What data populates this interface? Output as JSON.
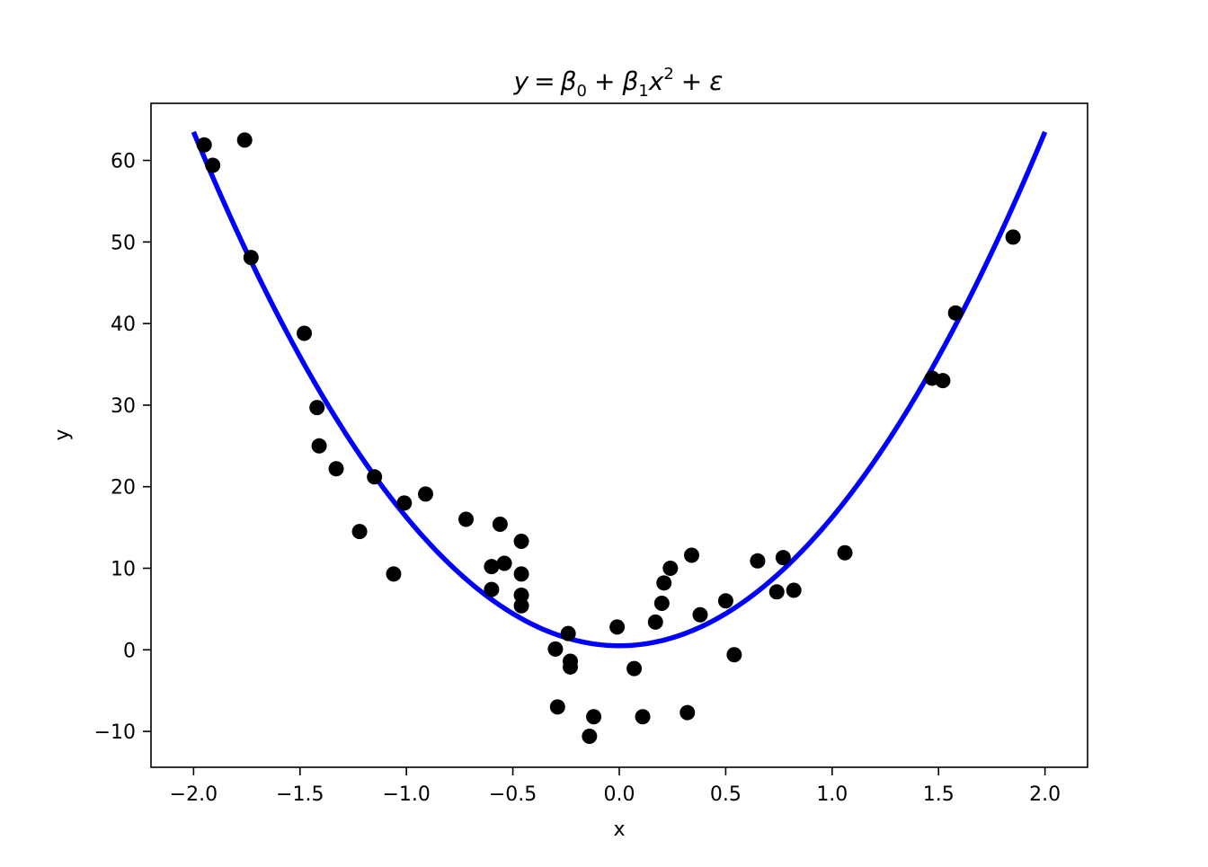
{
  "chart_data": {
    "type": "scatter",
    "title": {
      "y": "y",
      "eq": "=",
      "b0": "β",
      "b0_sub": "0",
      "plus1": "+",
      "b1": "β",
      "b1_sub": "1",
      "xvar": "x",
      "xpow": "2",
      "plus2": "+",
      "eps": "ε"
    },
    "xlabel": "x",
    "ylabel": "y",
    "xlim": [
      -2.2,
      2.2
    ],
    "ylim": [
      -14.4,
      67.0
    ],
    "xticks": [
      -2.0,
      -1.5,
      -1.0,
      -0.5,
      0.0,
      0.5,
      1.0,
      1.5,
      2.0
    ],
    "xtick_labels": [
      "−2.0",
      "−1.5",
      "−1.0",
      "−0.5",
      "0.0",
      "0.5",
      "1.0",
      "1.5",
      "2.0"
    ],
    "yticks": [
      -10,
      0,
      10,
      20,
      30,
      40,
      50,
      60
    ],
    "ytick_labels": [
      "−10",
      "0",
      "10",
      "20",
      "30",
      "40",
      "50",
      "60"
    ],
    "grid": false,
    "series": [
      {
        "kind": "scatter",
        "color": "#000000",
        "points": [
          [
            -1.95,
            61.9
          ],
          [
            -1.91,
            59.4
          ],
          [
            -1.76,
            62.5
          ],
          [
            -1.73,
            48.1
          ],
          [
            -1.48,
            38.8
          ],
          [
            -1.42,
            29.7
          ],
          [
            -1.41,
            25.0
          ],
          [
            -1.33,
            22.2
          ],
          [
            -1.22,
            14.5
          ],
          [
            -1.15,
            21.2
          ],
          [
            -1.06,
            9.3
          ],
          [
            -1.01,
            18.0
          ],
          [
            -0.91,
            19.1
          ],
          [
            -0.72,
            16.0
          ],
          [
            -0.6,
            10.2
          ],
          [
            -0.6,
            7.4
          ],
          [
            -0.56,
            15.4
          ],
          [
            -0.54,
            10.6
          ],
          [
            -0.46,
            13.3
          ],
          [
            -0.46,
            9.3
          ],
          [
            -0.46,
            6.7
          ],
          [
            -0.46,
            5.4
          ],
          [
            -0.3,
            0.1
          ],
          [
            -0.29,
            -7.0
          ],
          [
            -0.24,
            2.0
          ],
          [
            -0.23,
            -1.4
          ],
          [
            -0.23,
            -2.1
          ],
          [
            -0.14,
            -10.6
          ],
          [
            -0.12,
            -8.2
          ],
          [
            -0.01,
            2.8
          ],
          [
            0.07,
            -2.3
          ],
          [
            0.11,
            -8.2
          ],
          [
            0.17,
            3.4
          ],
          [
            0.2,
            5.7
          ],
          [
            0.21,
            8.2
          ],
          [
            0.24,
            10.0
          ],
          [
            0.32,
            -7.7
          ],
          [
            0.34,
            11.6
          ],
          [
            0.38,
            4.3
          ],
          [
            0.5,
            6.0
          ],
          [
            0.54,
            -0.6
          ],
          [
            0.65,
            10.9
          ],
          [
            0.74,
            7.1
          ],
          [
            0.77,
            11.3
          ],
          [
            0.82,
            7.3
          ],
          [
            1.06,
            11.9
          ],
          [
            1.47,
            33.3
          ],
          [
            1.52,
            33.0
          ],
          [
            1.58,
            41.3
          ],
          [
            1.85,
            50.6
          ]
        ]
      },
      {
        "kind": "line",
        "color": "#0000ff",
        "formula": "y = 0.5 + 15.75 x^2",
        "beta0": 0.5,
        "beta1": 15.75,
        "x_range": [
          -2.0,
          2.0
        ]
      }
    ]
  }
}
